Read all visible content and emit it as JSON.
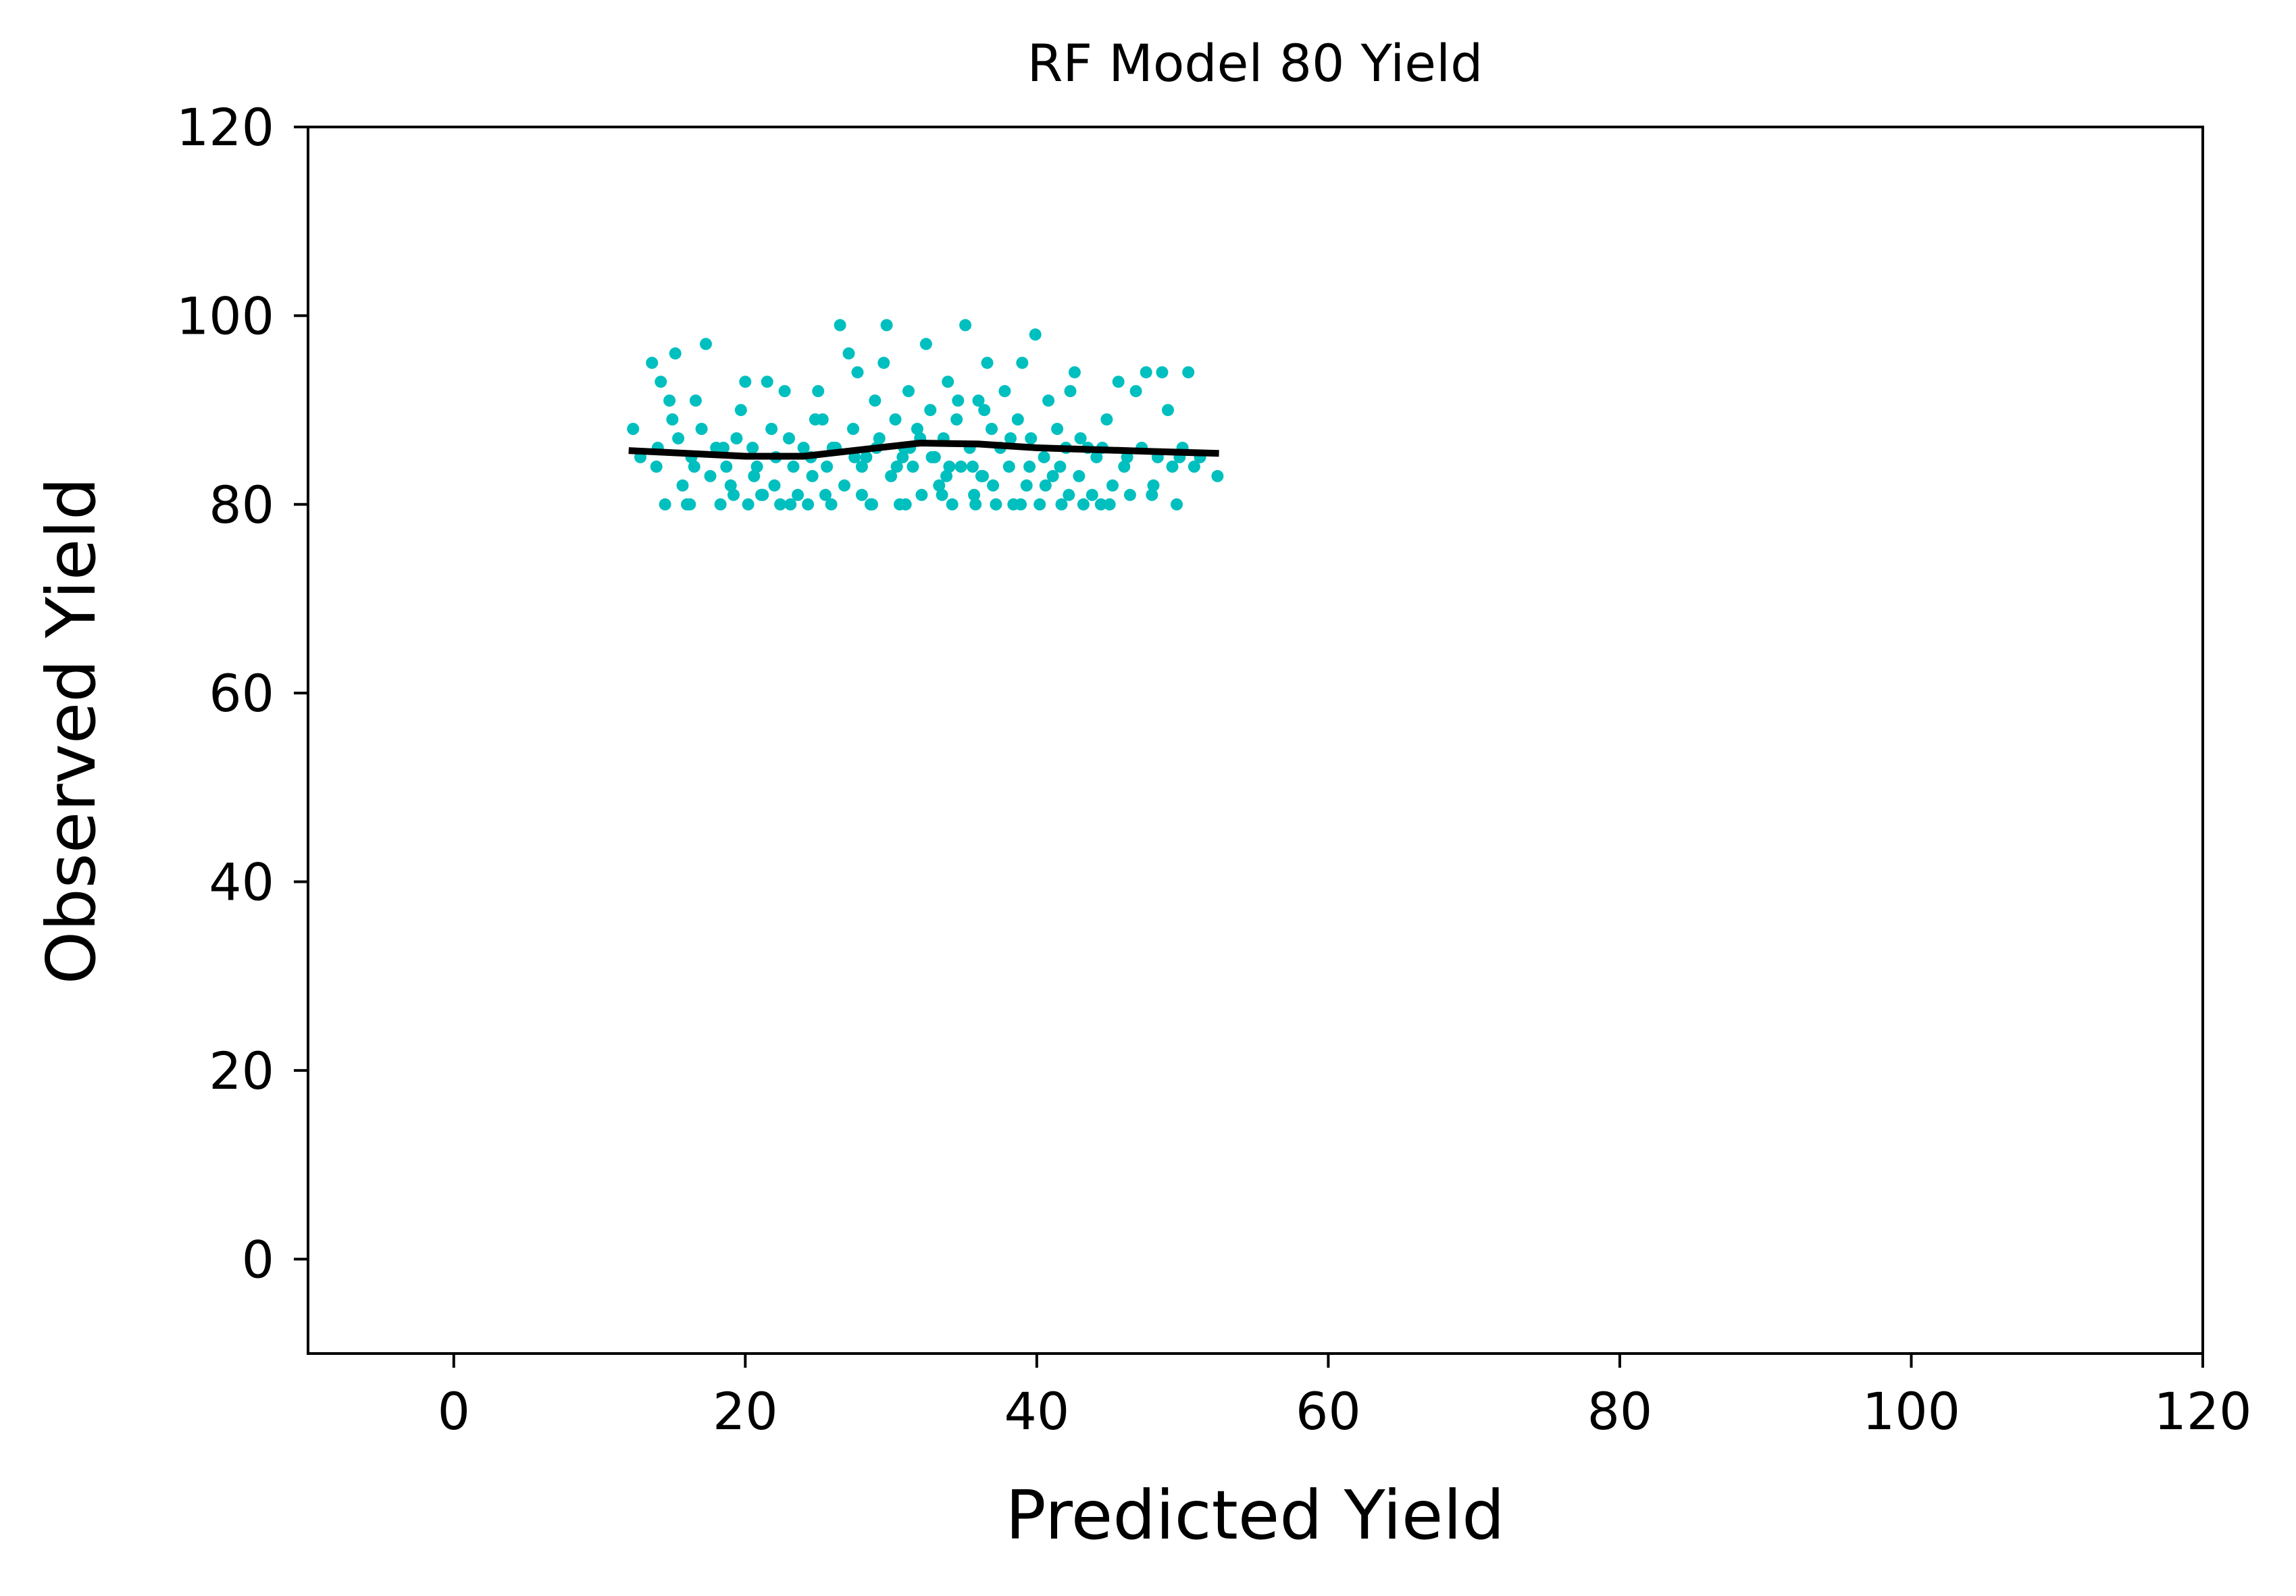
{
  "chart_data": {
    "type": "scatter",
    "title": "RF Model 80 Yield",
    "xlabel": "Predicted Yield",
    "ylabel": "Observed Yield",
    "xlim": [
      -10,
      120
    ],
    "ylim": [
      -10,
      120
    ],
    "xticks": [
      0,
      20,
      40,
      60,
      80,
      100,
      120
    ],
    "yticks": [
      0,
      20,
      40,
      60,
      80,
      100,
      120
    ],
    "grid": false,
    "legend": "none",
    "colors": {
      "points": "#00bfbf",
      "trend": "#000000",
      "axes": "#000000",
      "background": "#ffffff"
    },
    "series": [
      {
        "kind": "points",
        "points": [
          [
            12.3,
            88
          ],
          [
            13.6,
            95
          ],
          [
            13.9,
            84
          ],
          [
            14.2,
            93
          ],
          [
            14.5,
            80
          ],
          [
            14.8,
            91
          ],
          [
            15.2,
            96
          ],
          [
            15.4,
            87
          ],
          [
            15.7,
            82
          ],
          [
            16.0,
            80
          ],
          [
            16.3,
            85
          ],
          [
            16.6,
            91
          ],
          [
            17.0,
            88
          ],
          [
            17.3,
            97
          ],
          [
            17.6,
            83
          ],
          [
            18.0,
            86
          ],
          [
            18.3,
            80
          ],
          [
            18.7,
            84
          ],
          [
            19.0,
            82
          ],
          [
            19.4,
            87
          ],
          [
            19.7,
            90
          ],
          [
            20.0,
            93
          ],
          [
            20.2,
            80
          ],
          [
            20.5,
            86
          ],
          [
            20.8,
            84
          ],
          [
            21.1,
            81
          ],
          [
            21.5,
            93
          ],
          [
            21.8,
            88
          ],
          [
            22.1,
            85
          ],
          [
            22.4,
            80
          ],
          [
            22.7,
            92
          ],
          [
            23.0,
            87
          ],
          [
            23.3,
            84
          ],
          [
            23.6,
            81
          ],
          [
            24.0,
            86
          ],
          [
            24.3,
            80
          ],
          [
            24.6,
            83
          ],
          [
            25.0,
            92
          ],
          [
            25.3,
            89
          ],
          [
            25.6,
            84
          ],
          [
            25.9,
            80
          ],
          [
            26.2,
            86
          ],
          [
            26.5,
            99
          ],
          [
            26.8,
            82
          ],
          [
            27.1,
            96
          ],
          [
            27.4,
            88
          ],
          [
            27.7,
            94
          ],
          [
            28.0,
            81
          ],
          [
            28.3,
            85
          ],
          [
            28.6,
            80
          ],
          [
            28.9,
            91
          ],
          [
            29.2,
            87
          ],
          [
            29.5,
            95
          ],
          [
            29.7,
            99
          ],
          [
            30.0,
            83
          ],
          [
            30.3,
            89
          ],
          [
            30.6,
            80
          ],
          [
            30.9,
            86
          ],
          [
            31.2,
            92
          ],
          [
            31.5,
            84
          ],
          [
            31.8,
            88
          ],
          [
            32.1,
            81
          ],
          [
            32.4,
            97
          ],
          [
            32.7,
            90
          ],
          [
            33.0,
            85
          ],
          [
            33.3,
            82
          ],
          [
            33.6,
            87
          ],
          [
            33.9,
            93
          ],
          [
            34.2,
            80
          ],
          [
            34.5,
            89
          ],
          [
            34.8,
            84
          ],
          [
            35.1,
            99
          ],
          [
            35.4,
            86
          ],
          [
            35.7,
            81
          ],
          [
            36.0,
            91
          ],
          [
            36.3,
            83
          ],
          [
            36.6,
            95
          ],
          [
            36.9,
            88
          ],
          [
            37.2,
            80
          ],
          [
            37.5,
            86
          ],
          [
            37.8,
            92
          ],
          [
            38.1,
            84
          ],
          [
            38.4,
            80
          ],
          [
            38.7,
            89
          ],
          [
            39.0,
            95
          ],
          [
            39.3,
            82
          ],
          [
            39.6,
            87
          ],
          [
            39.9,
            98
          ],
          [
            40.2,
            80
          ],
          [
            40.5,
            85
          ],
          [
            40.8,
            91
          ],
          [
            41.1,
            83
          ],
          [
            41.4,
            88
          ],
          [
            41.7,
            80
          ],
          [
            42.0,
            86
          ],
          [
            42.3,
            92
          ],
          [
            42.6,
            94
          ],
          [
            42.9,
            83
          ],
          [
            43.2,
            80
          ],
          [
            43.5,
            86
          ],
          [
            43.8,
            81
          ],
          [
            44.1,
            85
          ],
          [
            44.4,
            80
          ],
          [
            44.8,
            89
          ],
          [
            45.2,
            82
          ],
          [
            45.6,
            93
          ],
          [
            46.0,
            84
          ],
          [
            46.4,
            81
          ],
          [
            46.8,
            92
          ],
          [
            47.2,
            86
          ],
          [
            47.5,
            94
          ],
          [
            47.9,
            81
          ],
          [
            48.3,
            85
          ],
          [
            48.6,
            94
          ],
          [
            49.0,
            90
          ],
          [
            49.3,
            84
          ],
          [
            49.6,
            80
          ],
          [
            50.0,
            86
          ],
          [
            50.4,
            94
          ],
          [
            50.8,
            84
          ],
          [
            51.2,
            85
          ],
          [
            52.4,
            83
          ],
          [
            12.8,
            85
          ],
          [
            14.0,
            86
          ],
          [
            15.0,
            89
          ],
          [
            16.5,
            84
          ],
          [
            18.5,
            86
          ],
          [
            19.2,
            81
          ],
          [
            20.6,
            83
          ],
          [
            22.0,
            82
          ],
          [
            23.1,
            80
          ],
          [
            24.8,
            89
          ],
          [
            26.0,
            86
          ],
          [
            27.5,
            85
          ],
          [
            29.0,
            86
          ],
          [
            30.4,
            84
          ],
          [
            31.3,
            86
          ],
          [
            32.8,
            85
          ],
          [
            33.8,
            83
          ],
          [
            34.6,
            91
          ],
          [
            35.6,
            84
          ],
          [
            36.4,
            90
          ],
          [
            37.0,
            82
          ],
          [
            38.2,
            87
          ],
          [
            39.5,
            84
          ],
          [
            40.6,
            82
          ],
          [
            41.6,
            84
          ],
          [
            43.0,
            87
          ],
          [
            44.5,
            86
          ],
          [
            46.2,
            85
          ],
          [
            48.0,
            82
          ],
          [
            49.8,
            85
          ],
          [
            16.2,
            80
          ],
          [
            21.2,
            81
          ],
          [
            25.5,
            81
          ],
          [
            28.7,
            80
          ],
          [
            31.0,
            80
          ],
          [
            33.5,
            81
          ],
          [
            35.8,
            80
          ],
          [
            38.9,
            80
          ],
          [
            42.2,
            81
          ],
          [
            45.0,
            80
          ],
          [
            30.8,
            85
          ],
          [
            34.0,
            84
          ],
          [
            36.2,
            83
          ],
          [
            32.0,
            87
          ],
          [
            28.0,
            84
          ],
          [
            24.5,
            85
          ]
        ]
      },
      {
        "kind": "trend-line",
        "x": [
          12,
          16,
          20,
          24,
          28,
          32,
          36,
          40,
          44,
          48,
          52.5
        ],
        "y": [
          85.7,
          85.4,
          85.1,
          85.1,
          85.8,
          86.5,
          86.4,
          86.0,
          85.8,
          85.6,
          85.4
        ]
      }
    ]
  }
}
